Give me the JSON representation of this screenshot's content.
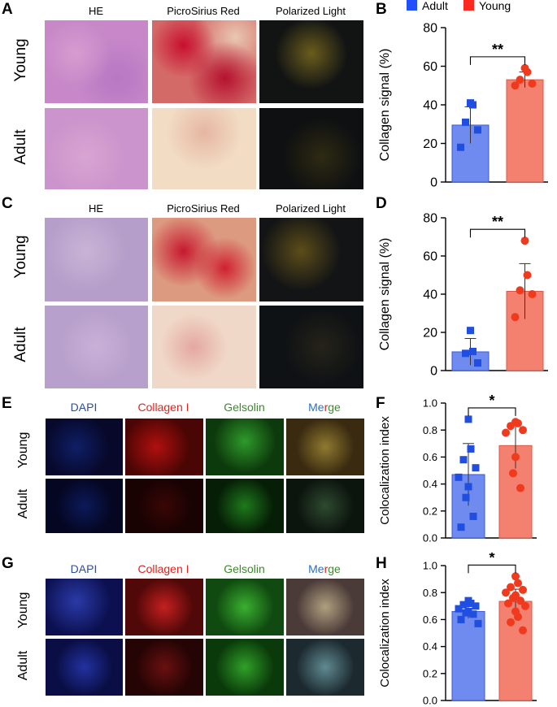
{
  "panels": {
    "A": "A",
    "B": "B",
    "C": "C",
    "D": "D",
    "E": "E",
    "F": "F",
    "G": "G",
    "H": "H"
  },
  "histo": {
    "columns": [
      "HE",
      "PicroSirius Red",
      "Polarized Light"
    ],
    "rows": [
      "Young",
      "Adult"
    ]
  },
  "fluor": {
    "columns": [
      "DAPI",
      "Collagen I",
      "Gelsolin",
      "Merge"
    ],
    "merge_letters": [
      "Me",
      "r",
      "ge"
    ],
    "rows": [
      "Young",
      "Adult"
    ],
    "colors": {
      "dapi": "#2b4ea0",
      "collagen": "#e0231c",
      "gelsolin": "#3a8a2a",
      "merge_blue": "#2b70c0",
      "merge_red": "#d8262a",
      "merge_green": "#3d8a2c"
    }
  },
  "legend": {
    "adult": "Adult",
    "young": "Young",
    "adult_color": "#1f4fff",
    "young_color": "#ff2a1f"
  },
  "colors": {
    "adult_fill": "#6f8bf0",
    "young_fill": "#f4806f",
    "adult_point": "#1f4ee0",
    "young_point": "#ef3a1e"
  },
  "chart_data": [
    {
      "panel": "B",
      "type": "bar",
      "categories": [
        "Adult",
        "Young"
      ],
      "ylabel": "Collagen signal (%)",
      "ylim": [
        0,
        80
      ],
      "yticks": [
        0,
        20,
        40,
        60,
        80
      ],
      "significance": "**",
      "series": [
        {
          "name": "Adult",
          "mean": 29.5,
          "sd": 9.5,
          "points": [
            41,
            40,
            31,
            27,
            18
          ]
        },
        {
          "name": "Young",
          "mean": 53,
          "sd": 4,
          "points": [
            59,
            57,
            53,
            51,
            50
          ]
        }
      ]
    },
    {
      "panel": "D",
      "type": "bar",
      "categories": [
        "Adult",
        "Young"
      ],
      "ylabel": "Collagen signal (%)",
      "ylim": [
        0,
        80
      ],
      "yticks": [
        0,
        20,
        40,
        60,
        80
      ],
      "significance": "**",
      "series": [
        {
          "name": "Adult",
          "mean": 9.8,
          "sd": 7,
          "points": [
            21,
            10,
            9,
            4
          ]
        },
        {
          "name": "Young",
          "mean": 41.5,
          "sd": 14.5,
          "points": [
            68,
            50,
            42,
            40,
            28
          ]
        }
      ]
    },
    {
      "panel": "F",
      "type": "bar",
      "categories": [
        "Adult",
        "Young"
      ],
      "ylabel": "Colocalization index",
      "ylim": [
        0,
        1.0
      ],
      "yticks": [
        "0.0",
        "0.2",
        "0.4",
        "0.6",
        "0.8",
        "1.0"
      ],
      "significance": "*",
      "series": [
        {
          "name": "Adult",
          "mean": 0.47,
          "sd": 0.23,
          "points": [
            0.88,
            0.66,
            0.58,
            0.52,
            0.45,
            0.38,
            0.3,
            0.16,
            0.08
          ]
        },
        {
          "name": "Young",
          "mean": 0.685,
          "sd": 0.17,
          "points": [
            0.86,
            0.85,
            0.83,
            0.8,
            0.78,
            0.6,
            0.48,
            0.37
          ]
        }
      ]
    },
    {
      "panel": "H",
      "type": "bar",
      "categories": [
        "Adult",
        "Young"
      ],
      "ylabel": "Colocalization index",
      "ylim": [
        0,
        1.0
      ],
      "yticks": [
        "0.0",
        "0.2",
        "0.4",
        "0.6",
        "0.8",
        "1.0"
      ],
      "significance": "*",
      "series": [
        {
          "name": "Adult",
          "mean": 0.66,
          "sd": 0.05,
          "points": [
            0.74,
            0.72,
            0.71,
            0.7,
            0.68,
            0.66,
            0.65,
            0.64,
            0.6,
            0.57
          ]
        },
        {
          "name": "Young",
          "mean": 0.735,
          "sd": 0.09,
          "points": [
            0.92,
            0.87,
            0.84,
            0.82,
            0.8,
            0.78,
            0.76,
            0.74,
            0.72,
            0.7,
            0.66,
            0.62,
            0.58,
            0.52
          ]
        }
      ]
    }
  ]
}
